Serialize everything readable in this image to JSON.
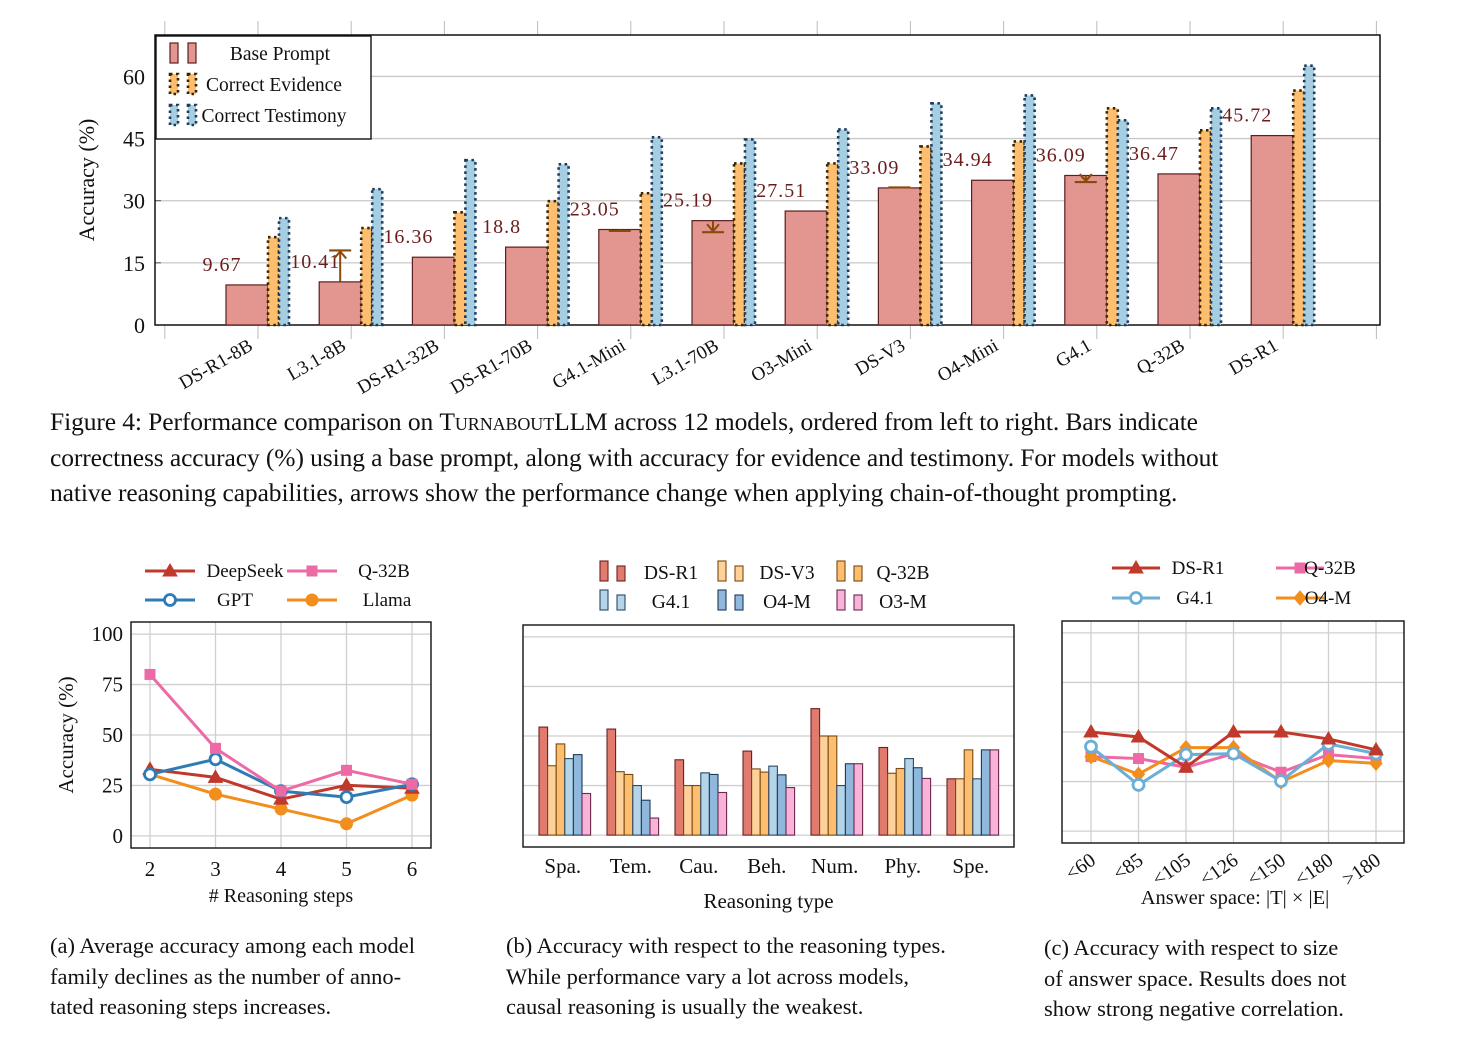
{
  "figure4": {
    "caption_prefix": "Figure 4: Performance comparison on ",
    "caption_name_sc": "Turnabout",
    "caption_name_rest": "LLM",
    "caption_line1_tail": " across 12 models, ordered from left to right. Bars indicate",
    "caption_line2": "correctness accuracy (%) using a base prompt, along with accuracy for evidence and testimony. For models without",
    "caption_line3": "native reasoning capabilities, arrows show the performance change when applying chain-of-thought prompting."
  },
  "subcaptions": {
    "a": [
      "(a) Average accuracy among each model",
      "family declines as the number of anno-",
      "tated reasoning steps increases."
    ],
    "b": [
      "(b) Accuracy with respect to the reasoning types.",
      "While performance vary a lot across models,",
      "causal reasoning is usually the weakest."
    ],
    "c": [
      "(c) Accuracy with respect to size",
      "of answer space. Results does not",
      "show strong negative correlation."
    ]
  },
  "chart_data": [
    {
      "id": "main",
      "type": "bar",
      "title": "",
      "xlabel": "",
      "ylabel": "Accuracy (%)",
      "ylim": [
        0,
        70
      ],
      "yticks": [
        0,
        15,
        30,
        45,
        60
      ],
      "grid": true,
      "legend_position": "top-left",
      "categories": [
        "DS-R1-8B",
        "L3.1-8B",
        "DS-R1-32B",
        "DS-R1-70B",
        "G4.1-Mini",
        "L3.1-70B",
        "O3-Mini",
        "DS-V3",
        "O4-Mini",
        "G4.1",
        "Q-32B",
        "DS-R1"
      ],
      "series": [
        {
          "name": "Base Prompt",
          "color": "#e3968f",
          "stroke": "#5a1f1f",
          "values": [
            9.67,
            10.41,
            16.36,
            18.8,
            23.05,
            25.19,
            27.51,
            33.09,
            34.94,
            36.09,
            36.47,
            45.72
          ]
        },
        {
          "name": "Correct Evidence",
          "color": "#fdbf6f",
          "stroke": "#3a2400",
          "values": [
            21.2,
            23.4,
            27.2,
            29.9,
            31.8,
            39.0,
            39.0,
            43.1,
            44.3,
            52.3,
            47.0,
            56.6
          ]
        },
        {
          "name": "Correct Testimony",
          "color": "#a6cee3",
          "stroke": "#1f3a5a",
          "values": [
            25.8,
            32.8,
            39.8,
            38.8,
            45.3,
            44.8,
            47.2,
            53.5,
            55.4,
            49.4,
            52.3,
            62.6
          ]
        }
      ],
      "data_labels": [
        "9.67",
        "10.41",
        "16.36",
        "18.8",
        "23.05",
        "25.19",
        "27.51",
        "33.09",
        "34.94",
        "36.09",
        "36.47",
        "45.72"
      ],
      "cot_arrows": [
        {
          "category": "L3.1-8B",
          "from": 10.41,
          "to": 18.0
        },
        {
          "category": "G4.1-Mini",
          "from": 23.05,
          "to": 22.7
        },
        {
          "category": "L3.1-70B",
          "from": 25.19,
          "to": 22.4
        },
        {
          "category": "DS-V3",
          "from": 33.09,
          "to": 33.2
        },
        {
          "category": "G4.1",
          "from": 36.09,
          "to": 34.5
        }
      ],
      "arrow_color": "#8b4a0b",
      "label_color": "#6b1d1d"
    },
    {
      "id": "a",
      "type": "line",
      "xlabel": "# Reasoning steps",
      "ylabel": "Accuracy (%)",
      "ylim": [
        -6,
        106
      ],
      "yticks": [
        0,
        25,
        50,
        75,
        100
      ],
      "x": [
        2,
        3,
        4,
        5,
        6
      ],
      "grid": true,
      "legend_position": "top",
      "series": [
        {
          "name": "DeepSeek",
          "color": "#c0392b",
          "marker": "triangle",
          "values": [
            33,
            29,
            18.2,
            25.1,
            23.6
          ]
        },
        {
          "name": "Q-32B",
          "color": "#ee6aa7",
          "marker": "square",
          "values": [
            80,
            43.4,
            22.2,
            32.5,
            25.6
          ]
        },
        {
          "name": "GPT",
          "color": "#2f7bb5",
          "marker": "circle-open",
          "values": [
            30.5,
            38,
            22.2,
            19.2,
            25.6
          ]
        },
        {
          "name": "Llama",
          "color": "#f28e1c",
          "marker": "circle",
          "values": [
            30.5,
            20.7,
            13.3,
            6,
            20.2
          ]
        }
      ]
    },
    {
      "id": "b",
      "type": "bar",
      "xlabel": "Reasoning type",
      "ylabel": "",
      "ylim": [
        -6,
        106
      ],
      "ygrid": [
        0,
        25,
        50,
        75,
        100
      ],
      "grid": true,
      "legend_position": "top",
      "categories": [
        "Spa.",
        "Tem.",
        "Cau.",
        "Beh.",
        "Num.",
        "Phy.",
        "Spe."
      ],
      "series": [
        {
          "name": "DS-R1",
          "color": "#e07b6e",
          "stroke": "#6b1f1f",
          "values": [
            54.5,
            53.5,
            38,
            42.4,
            63.8,
            44.2,
            28.4
          ]
        },
        {
          "name": "DS-V3",
          "color": "#fdd199",
          "stroke": "#7a4a10",
          "values": [
            35,
            32,
            25,
            33.4,
            50,
            31.2,
            28.4
          ]
        },
        {
          "name": "Q-32B",
          "color": "#fdbf6f",
          "stroke": "#7a4a10",
          "values": [
            46,
            30.6,
            25,
            31.8,
            50,
            33.6,
            43
          ]
        },
        {
          "name": "G4.1",
          "color": "#b4d4ea",
          "stroke": "#2a4a66",
          "values": [
            38.6,
            25,
            31.4,
            34.8,
            25,
            38.6,
            28.4
          ]
        },
        {
          "name": "O4-M",
          "color": "#8fb8dc",
          "stroke": "#1f3a5a",
          "values": [
            40.6,
            17.6,
            30.6,
            30.4,
            36,
            34,
            43
          ]
        },
        {
          "name": "O3-M",
          "color": "#f9b3da",
          "stroke": "#6a2a4a",
          "values": [
            21,
            8.6,
            21.5,
            24,
            36,
            28.6,
            43
          ]
        }
      ]
    },
    {
      "id": "c",
      "type": "line",
      "xlabel": "Answer space: |T| × |E|",
      "ylabel": "",
      "ylim": [
        -6,
        106
      ],
      "ygrid": [
        0,
        25,
        50,
        75,
        100
      ],
      "categories": [
        "<60",
        "<85",
        "<105",
        "<126",
        "<150",
        "<180",
        ">180"
      ],
      "grid": true,
      "legend_position": "top",
      "series": [
        {
          "name": "DS-R1",
          "color": "#c0392b",
          "marker": "triangle",
          "values": [
            50,
            47.5,
            32.2,
            50,
            50,
            46.5,
            41
          ]
        },
        {
          "name": "Q-32B",
          "color": "#ee6aa7",
          "marker": "square",
          "values": [
            37.6,
            36.6,
            32.2,
            39.1,
            29.7,
            38.6,
            36.6
          ]
        },
        {
          "name": "G4.1",
          "color": "#6baed6",
          "marker": "circle-open",
          "values": [
            42.6,
            23.3,
            38.6,
            39.1,
            25.2,
            44,
            39.1
          ]
        },
        {
          "name": "O4-M",
          "color": "#f28e1c",
          "marker": "diamond",
          "values": [
            37.6,
            28.7,
            42.1,
            42.1,
            24.8,
            35.6,
            34.2
          ]
        }
      ]
    }
  ]
}
